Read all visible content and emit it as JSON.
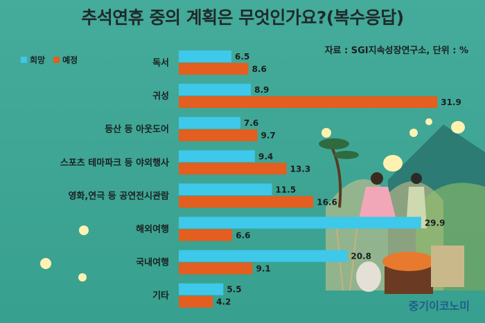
{
  "title": "추석연휴 중의 계획은 무엇인가요?(복수응답)",
  "source": "자료 : SGI지속성장연구소, 단위 : %",
  "brand": "중기이코노미",
  "colors": {
    "hope": "#3ec8ea",
    "plan": "#e35e1f",
    "background": "#3fa595"
  },
  "chart_data": {
    "type": "bar",
    "orientation": "horizontal",
    "categories": [
      "독서",
      "귀성",
      "등산 등 아웃도어",
      "스포츠 테마파크 등 야외행사",
      "영화,연극 등 공연전시관람",
      "해외여행",
      "국내여행",
      "기타"
    ],
    "series": [
      {
        "name": "희망",
        "values": [
          6.5,
          8.9,
          7.6,
          9.4,
          11.5,
          29.9,
          20.8,
          5.5
        ]
      },
      {
        "name": "예정",
        "values": [
          8.6,
          31.9,
          9.7,
          13.3,
          16.6,
          6.6,
          9.1,
          4.2
        ]
      }
    ],
    "legend": "top-left",
    "grid": false,
    "xlim": [
      0,
      31.9
    ]
  }
}
